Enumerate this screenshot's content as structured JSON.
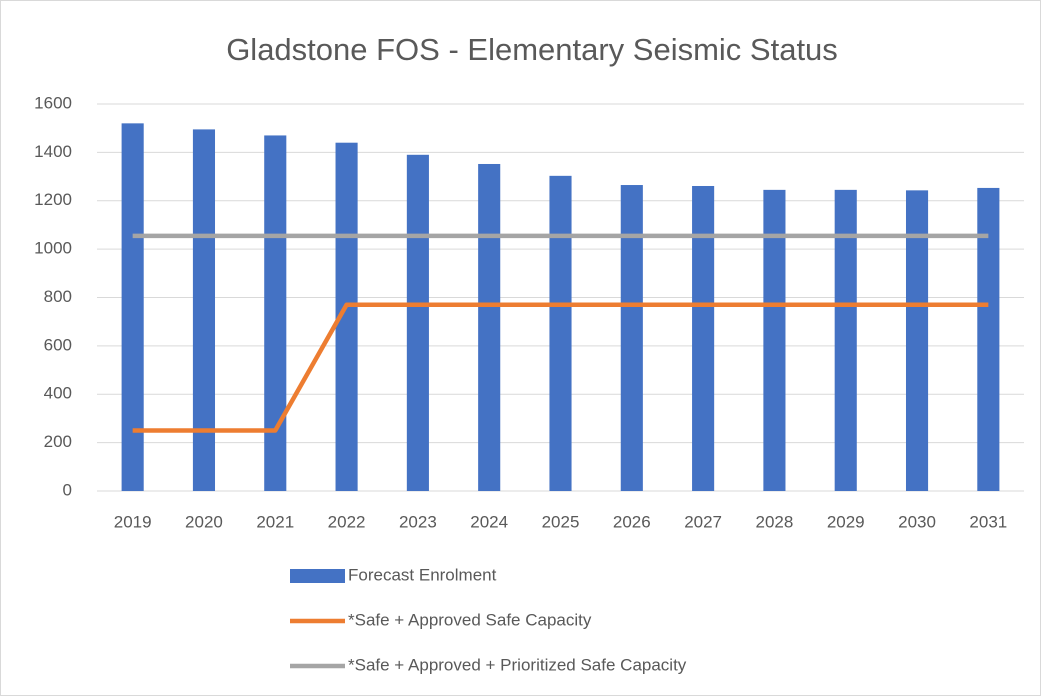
{
  "chart_data": {
    "type": "bar",
    "title": "Gladstone FOS - Elementary Seismic Status",
    "categories": [
      "2019",
      "2020",
      "2021",
      "2022",
      "2023",
      "2024",
      "2025",
      "2026",
      "2027",
      "2028",
      "2029",
      "2030",
      "2031"
    ],
    "series": [
      {
        "name": "Forecast Enrolment",
        "type": "bar",
        "color": "#4472c4",
        "values": [
          1520,
          1495,
          1470,
          1440,
          1390,
          1352,
          1303,
          1265,
          1261,
          1245,
          1245,
          1243,
          1253
        ]
      },
      {
        "name": "*Safe + Approved Safe Capacity",
        "type": "line",
        "color": "#ed7d31",
        "values": [
          250,
          250,
          250,
          770,
          770,
          770,
          770,
          770,
          770,
          770,
          770,
          770,
          770
        ]
      },
      {
        "name": "*Safe + Approved + Prioritized Safe Capacity",
        "type": "line",
        "color": "#a5a5a5",
        "values": [
          1055,
          1055,
          1055,
          1055,
          1055,
          1055,
          1055,
          1055,
          1055,
          1055,
          1055,
          1055,
          1055
        ]
      }
    ],
    "ylim": [
      0,
      1600
    ],
    "yticks": [
      0,
      200,
      400,
      600,
      800,
      1000,
      1200,
      1400,
      1600
    ],
    "grid": true,
    "legend": "bottom"
  }
}
